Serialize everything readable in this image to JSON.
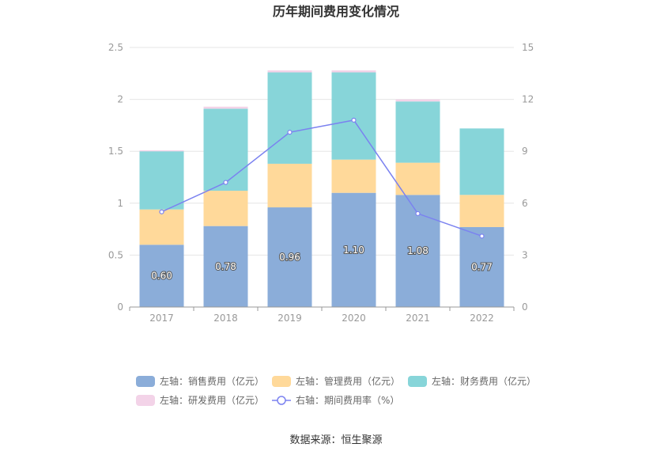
{
  "chart_data": {
    "type": "bar",
    "stacked": true,
    "title": "历年期间费用变化情况",
    "categories": [
      "2017",
      "2018",
      "2019",
      "2020",
      "2021",
      "2022"
    ],
    "y_left": {
      "min": 0,
      "max": 2.5,
      "ticks": [
        "0",
        "0.5",
        "1",
        "1.5",
        "2",
        "2.5"
      ]
    },
    "y_right": {
      "min": 0,
      "max": 15,
      "ticks": [
        "0",
        "3",
        "6",
        "9",
        "12",
        "15"
      ]
    },
    "grid": true,
    "legend_position": "bottom",
    "series": [
      {
        "name": "左轴：销售费用（亿元）",
        "axis": "left",
        "color": "#8badd9",
        "values": [
          0.6,
          0.78,
          0.96,
          1.1,
          1.08,
          0.77
        ],
        "labels": [
          "0.60",
          "0.78",
          "0.96",
          "1.10",
          "1.08",
          "0.77"
        ]
      },
      {
        "name": "左轴：管理费用（亿元）",
        "axis": "left",
        "color": "#ffd99a",
        "values": [
          0.34,
          0.34,
          0.42,
          0.32,
          0.31,
          0.31
        ]
      },
      {
        "name": "左轴：财务费用（亿元）",
        "axis": "left",
        "color": "#87d5d9",
        "values": [
          0.56,
          0.79,
          0.88,
          0.84,
          0.59,
          0.64
        ]
      },
      {
        "name": "左轴：研发费用（亿元）",
        "axis": "left",
        "color": "#f3d3e8",
        "values": [
          0.01,
          0.02,
          0.02,
          0.02,
          0.02,
          0.0
        ]
      },
      {
        "name": "右轴：期间费用率（%）",
        "axis": "right",
        "type": "line",
        "color": "#7b82f0",
        "values": [
          5.5,
          7.2,
          10.1,
          10.8,
          5.4,
          4.1
        ]
      }
    ],
    "source": "数据来源：恒生聚源"
  }
}
